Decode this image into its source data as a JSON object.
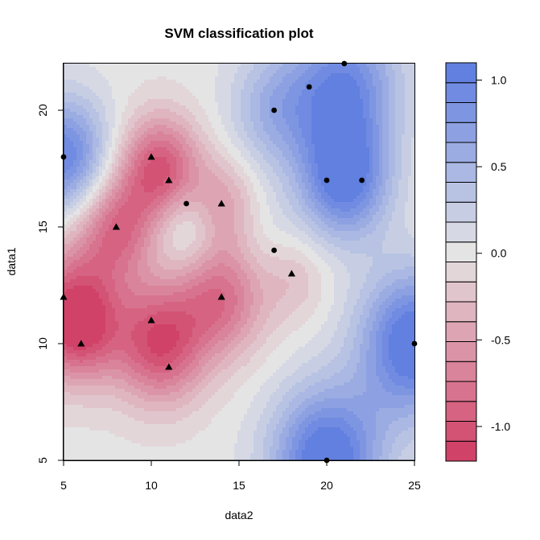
{
  "chart_data": {
    "type": "heatmap",
    "title": "SVM classification plot",
    "xlabel": "data2",
    "ylabel": "data1",
    "xlim": [
      5,
      25
    ],
    "ylim": [
      5,
      22
    ],
    "x_ticks": [
      "5",
      "10",
      "15",
      "20",
      "25"
    ],
    "y_ticks": [
      "5",
      "10",
      "15",
      "20"
    ],
    "colorbar": {
      "range": [
        -1.2,
        1.1
      ],
      "ticks": [
        "1.0",
        "0.5",
        "0.0",
        "-0.5",
        "-1.0"
      ],
      "levels": 20,
      "low_color": "#d03a62",
      "mid_color": "#e5e5e5",
      "high_color": "#5a7ae0"
    },
    "points": [
      {
        "x": 5,
        "y": 18,
        "class": "positive",
        "marker": "circle"
      },
      {
        "x": 12,
        "y": 16,
        "class": "positive",
        "marker": "circle"
      },
      {
        "x": 17,
        "y": 20,
        "class": "positive",
        "marker": "circle"
      },
      {
        "x": 17,
        "y": 14,
        "class": "positive",
        "marker": "circle"
      },
      {
        "x": 19,
        "y": 21,
        "class": "positive",
        "marker": "circle"
      },
      {
        "x": 21,
        "y": 22,
        "class": "positive",
        "marker": "circle"
      },
      {
        "x": 20,
        "y": 17,
        "class": "positive",
        "marker": "circle"
      },
      {
        "x": 22,
        "y": 17,
        "class": "positive",
        "marker": "circle"
      },
      {
        "x": 25,
        "y": 10,
        "class": "positive",
        "marker": "circle"
      },
      {
        "x": 20,
        "y": 5,
        "class": "positive",
        "marker": "circle"
      },
      {
        "x": 10,
        "y": 18,
        "class": "negative",
        "marker": "triangle"
      },
      {
        "x": 11,
        "y": 17,
        "class": "negative",
        "marker": "triangle"
      },
      {
        "x": 8,
        "y": 15,
        "class": "negative",
        "marker": "triangle"
      },
      {
        "x": 14,
        "y": 16,
        "class": "negative",
        "marker": "triangle"
      },
      {
        "x": 5,
        "y": 12,
        "class": "negative",
        "marker": "triangle"
      },
      {
        "x": 14,
        "y": 12,
        "class": "negative",
        "marker": "triangle"
      },
      {
        "x": 18,
        "y": 13,
        "class": "negative",
        "marker": "triangle"
      },
      {
        "x": 10,
        "y": 11,
        "class": "negative",
        "marker": "triangle"
      },
      {
        "x": 6,
        "y": 10,
        "class": "negative",
        "marker": "triangle"
      },
      {
        "x": 11,
        "y": 9,
        "class": "negative",
        "marker": "triangle"
      }
    ],
    "decision_field": {
      "bumps": [
        {
          "x": 5,
          "y": 18,
          "s": 1.8,
          "w": 1.0
        },
        {
          "x": 21,
          "y": 21,
          "s": 2.2,
          "w": 0.95
        },
        {
          "x": 17,
          "y": 20,
          "s": 1.8,
          "w": 0.5
        },
        {
          "x": 21,
          "y": 17,
          "s": 1.8,
          "w": 1.05
        },
        {
          "x": 25,
          "y": 10,
          "s": 2.2,
          "w": 1.2
        },
        {
          "x": 20,
          "y": 5,
          "s": 2.2,
          "w": 1.2
        },
        {
          "x": 17,
          "y": 14,
          "s": 1.6,
          "w": 0.2
        },
        {
          "x": 12,
          "y": 15,
          "s": 1.3,
          "w": 0.35
        },
        {
          "x": 10.5,
          "y": 17.5,
          "s": 1.6,
          "w": -1.0
        },
        {
          "x": 8,
          "y": 15,
          "s": 1.6,
          "w": -0.8
        },
        {
          "x": 5.5,
          "y": 11.5,
          "s": 2.0,
          "w": -0.9
        },
        {
          "x": 6,
          "y": 10.5,
          "s": 1.5,
          "w": -0.5
        },
        {
          "x": 10.5,
          "y": 10,
          "s": 1.8,
          "w": -1.05
        },
        {
          "x": 14,
          "y": 12,
          "s": 1.8,
          "w": -0.8
        },
        {
          "x": 14,
          "y": 16,
          "s": 1.4,
          "w": -0.45
        },
        {
          "x": 18,
          "y": 13,
          "s": 1.4,
          "w": -0.35
        }
      ]
    },
    "grid": false,
    "legend": "right colorbar"
  }
}
